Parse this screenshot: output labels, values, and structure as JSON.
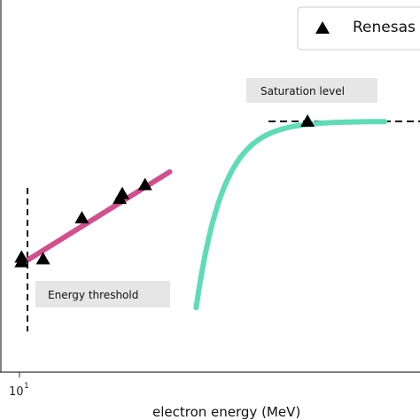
{
  "chart_data": {
    "type": "scatter",
    "x_scale": "log",
    "xlabel": "electron energy (MeV)",
    "ylabel": "",
    "x_ticks": [
      {
        "value": 10,
        "label": "10^1"
      }
    ],
    "grid": false,
    "legend_position": "top-right",
    "series": [
      {
        "name": "Renesas",
        "marker": "triangle",
        "color": "#000000",
        "x": [
          10.1,
          10.1,
          11.2,
          13.5,
          16.2,
          16.4,
          18.3,
          40.0
        ],
        "y": [
          0.238,
          0.212,
          0.228,
          0.458,
          0.567,
          0.594,
          0.644,
          1.0
        ]
      }
    ],
    "fit_lines": [
      {
        "color": "#d24f8e",
        "x": [
          10.15,
          20.6
        ],
        "y": [
          0.205,
          0.717
        ]
      },
      {
        "color": "#5fdcb6",
        "shape": "saturating",
        "x_start": 23.4,
        "x_end": 58.0,
        "y_start": -0.044,
        "y_end": 1.0
      }
    ],
    "annotations": [
      {
        "text": "Saturation level"
      },
      {
        "text": "Energy threshold"
      }
    ]
  },
  "colors": {
    "fit_pink": "#d24f8e",
    "fit_teal": "#5fdcb6",
    "annotation_box": "#e6e6e6",
    "marker": "#000000"
  }
}
